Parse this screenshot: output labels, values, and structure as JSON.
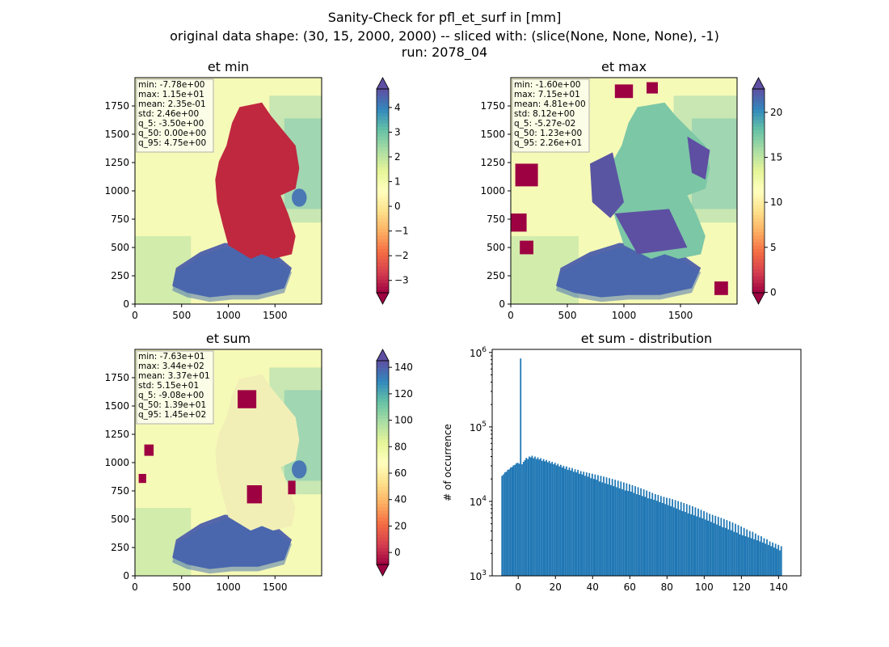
{
  "figure": {
    "title_lines": [
      "Sanity-Check for pfl_et_surf in [mm]",
      "original data shape: (30, 15, 2000, 2000) -- sliced with: (slice(None, None, None), -1)",
      "run: 2078_04"
    ]
  },
  "colors": {
    "spectral": [
      "#9e0142",
      "#d53e4f",
      "#f46d43",
      "#fdae61",
      "#fee08b",
      "#ffffbf",
      "#e6f598",
      "#abdda4",
      "#66c2a5",
      "#3288bd",
      "#5e4fa2"
    ],
    "hist_bar": "#1f77b4",
    "germany_min": "#c0283f",
    "germany_sum": "#f2efb6"
  },
  "chart_data": [
    {
      "type": "heatmap",
      "title": "et min",
      "colormap": "Spectral",
      "xlim": [
        0,
        2000
      ],
      "ylim": [
        0,
        2000
      ],
      "xticks": [
        "0",
        "500",
        "1000",
        "1500"
      ],
      "yticks": [
        "0",
        "250",
        "500",
        "750",
        "1000",
        "1250",
        "1500",
        "1750"
      ],
      "colorbar": {
        "min": -3.5,
        "max": 4.75,
        "ticks": [
          "−3",
          "−2",
          "−1",
          "0",
          "1",
          "2",
          "3",
          "4"
        ],
        "extend": "both"
      },
      "stats": [
        "min: -7.78e+00",
        "max: 1.15e+01",
        "mean: 2.35e-01",
        "std: 2.46e+00",
        "q_5: -3.50e+00",
        "q_50: 0.00e+00",
        "q_95: 4.75e+00"
      ]
    },
    {
      "type": "heatmap",
      "title": "et max",
      "colormap": "Spectral",
      "xlim": [
        0,
        2000
      ],
      "ylim": [
        0,
        2000
      ],
      "xticks": [
        "0",
        "500",
        "1000",
        "1500"
      ],
      "yticks": [
        "0",
        "250",
        "500",
        "750",
        "1000",
        "1250",
        "1500",
        "1750"
      ],
      "colorbar": {
        "min": -0.0527,
        "max": 22.6,
        "ticks": [
          "0",
          "5",
          "10",
          "15",
          "20"
        ],
        "extend": "both"
      },
      "stats": [
        "min: -1.60e+00",
        "max: 7.15e+01",
        "mean: 4.81e+00",
        "std: 8.12e+00",
        "q_5: -5.27e-02",
        "q_50: 1.23e+00",
        "q_95: 2.26e+01"
      ]
    },
    {
      "type": "heatmap",
      "title": "et sum",
      "colormap": "Spectral",
      "xlim": [
        0,
        2000
      ],
      "ylim": [
        0,
        2000
      ],
      "xticks": [
        "0",
        "500",
        "1000",
        "1500"
      ],
      "yticks": [
        "0",
        "250",
        "500",
        "750",
        "1000",
        "1250",
        "1500",
        "1750"
      ],
      "colorbar": {
        "min": -9.08,
        "max": 145,
        "ticks": [
          "0",
          "20",
          "40",
          "60",
          "80",
          "100",
          "120",
          "140"
        ],
        "extend": "both"
      },
      "stats": [
        "min: -7.63e+01",
        "max: 3.44e+02",
        "mean: 3.37e+01",
        "std: 5.15e+01",
        "q_5: -9.08e+00",
        "q_50: 1.39e+01",
        "q_95: 1.45e+02"
      ]
    },
    {
      "type": "bar",
      "title": "et sum - distribution",
      "xlabel": "",
      "ylabel": "# of occurrence",
      "xlim": [
        -14,
        152
      ],
      "ylim": [
        1000,
        1100000
      ],
      "yscale": "log",
      "xticks": [
        0,
        20,
        40,
        60,
        80,
        100,
        120,
        140
      ],
      "ytick_labels": [
        {
          "value": 1000,
          "base": "10",
          "exp": "3"
        },
        {
          "value": 10000,
          "base": "10",
          "exp": "4"
        },
        {
          "value": 100000,
          "base": "10",
          "exp": "5"
        },
        {
          "value": 1000000,
          "base": "10",
          "exp": "6"
        }
      ],
      "bin_start": -9.08,
      "bin_width": 0.77,
      "counts": [
        22000,
        23000,
        24500,
        25000,
        26500,
        27000,
        28500,
        29000,
        30500,
        31000,
        32500,
        33000,
        32000,
        830000,
        31500,
        34000,
        36000,
        38500,
        37000,
        40000,
        39000,
        41000,
        38000,
        40000,
        37000,
        39000,
        36500,
        38000,
        35000,
        37000,
        34500,
        36000,
        33500,
        35000,
        32500,
        34000,
        31500,
        33000,
        30500,
        32000,
        29500,
        31000,
        28500,
        30000,
        27500,
        29500,
        26500,
        28500,
        26000,
        28000,
        25000,
        27000,
        24500,
        26500,
        23500,
        25500,
        23000,
        25000,
        22000,
        24500,
        21500,
        24000,
        20500,
        23500,
        20000,
        23000,
        19500,
        22500,
        18500,
        22000,
        18000,
        21500,
        17500,
        21000,
        17000,
        20500,
        16500,
        20000,
        16000,
        19500,
        15500,
        19000,
        15000,
        18500,
        14500,
        18000,
        14000,
        17500,
        13800,
        17000,
        13500,
        16500,
        13000,
        16000,
        12500,
        15500,
        12200,
        15000,
        11800,
        14500,
        11500,
        14000,
        11000,
        13500,
        10800,
        13000,
        10500,
        12500,
        10200,
        12200,
        9800,
        11800,
        9500,
        11500,
        9200,
        11200,
        8900,
        11000,
        8600,
        10700,
        8300,
        10400,
        8000,
        10100,
        7700,
        9800,
        7400,
        9500,
        7200,
        9200,
        6900,
        8900,
        6700,
        8600,
        6500,
        8300,
        6300,
        8000,
        6100,
        7700,
        5900,
        7400,
        5700,
        7100,
        5500,
        6800,
        5300,
        6600,
        5100,
        6400,
        4900,
        6200,
        4700,
        6000,
        4500,
        5800,
        4400,
        5600,
        4200,
        5400,
        4100,
        5200,
        3900,
        5000,
        3800,
        4800,
        3600,
        4600,
        3500,
        4400,
        3400,
        4200,
        3300,
        4000,
        3200,
        3900,
        3100,
        3700,
        3000,
        3500,
        2900,
        3400,
        2800,
        3200,
        2700,
        3100,
        2600,
        2900,
        2500,
        2800,
        2400,
        2700,
        2300,
        2600,
        2200,
        2500
      ]
    }
  ]
}
